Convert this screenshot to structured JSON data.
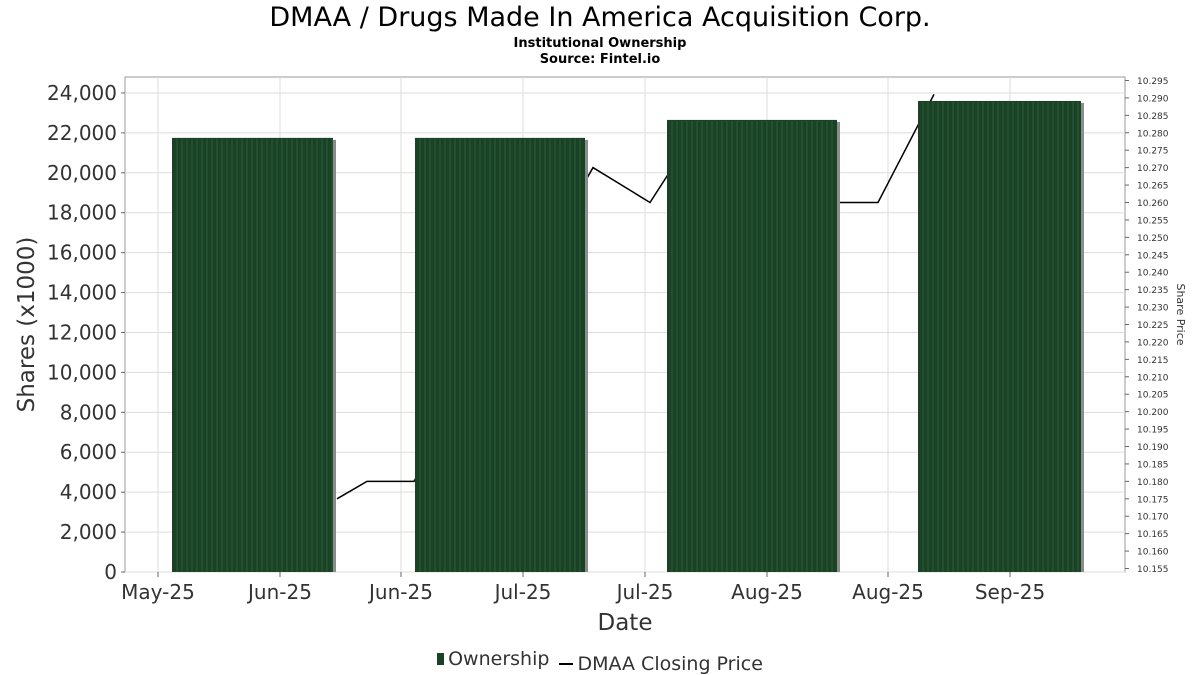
{
  "title": "DMAA / Drugs Made In America Acquisition Corp.",
  "subtitle": "Institutional Ownership",
  "source": "Source: Fintel.io",
  "colors": {
    "bar_fill": "#1a4326",
    "bar_stripe": "#2f5a3a",
    "bar_shadow": "#8c8c8c",
    "line": "#000000",
    "grid": "#dddddd",
    "axis_text": "#333333"
  },
  "legend": {
    "ownership_label": "Ownership",
    "price_label": "DMAA Closing Price"
  },
  "chart_data": {
    "type": "bar",
    "title": "DMAA / Drugs Made In America Acquisition Corp.",
    "xlabel": "Date",
    "ylabel": "Shares (x1000)",
    "y2label": "Share Price",
    "ylim": [
      0,
      24800
    ],
    "y2lim": [
      10.154,
      10.296
    ],
    "yticks": [
      "0",
      "2,000",
      "4,000",
      "6,000",
      "8,000",
      "10,000",
      "12,000",
      "14,000",
      "16,000",
      "18,000",
      "20,000",
      "22,000",
      "24,000"
    ],
    "y2ticks": [
      "10.155",
      "10.160",
      "10.165",
      "10.170",
      "10.175",
      "10.180",
      "10.185",
      "10.190",
      "10.195",
      "10.200",
      "10.205",
      "10.210",
      "10.215",
      "10.220",
      "10.225",
      "10.230",
      "10.235",
      "10.240",
      "10.245",
      "10.250",
      "10.255",
      "10.260",
      "10.265",
      "10.270",
      "10.275",
      "10.280",
      "10.285",
      "10.290",
      "10.295"
    ],
    "xticks": [
      "May-25",
      "Jun-25",
      "Jun-25",
      "Jul-25",
      "Jul-25",
      "Aug-25",
      "Aug-25",
      "Sep-25"
    ],
    "grid": true,
    "legend_position": "bottom",
    "series": [
      {
        "name": "Ownership",
        "type": "bar",
        "values": [
          21750,
          21750,
          22650,
          23600
        ]
      },
      {
        "name": "DMAA Closing Price",
        "type": "line",
        "values": [
          10.175,
          10.18,
          10.18,
          10.27,
          10.26,
          10.268,
          10.26,
          10.26,
          10.291
        ]
      }
    ]
  }
}
